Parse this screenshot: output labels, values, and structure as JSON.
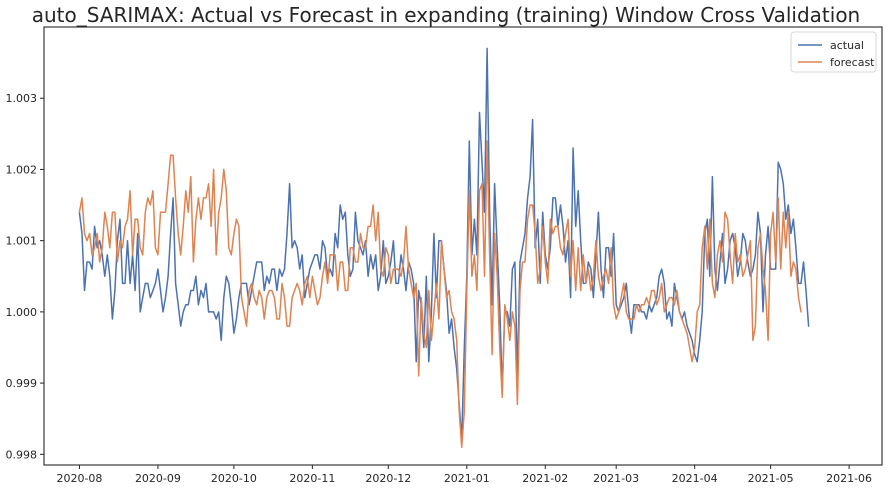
{
  "chart_data": {
    "type": "line",
    "title": "auto_SARIMAX: Actual vs Forecast in expanding (training) Window Cross Validation",
    "xlabel": "",
    "ylabel": "",
    "x_tick_labels": [
      "2020-08",
      "2020-09",
      "2020-10",
      "2020-11",
      "2020-12",
      "2021-01",
      "2021-02",
      "2021-03",
      "2021-04",
      "2021-05",
      "2021-06"
    ],
    "y_ticks": [
      0.998,
      0.999,
      1.0,
      1.001,
      1.002,
      1.003
    ],
    "y_tick_labels": [
      "0.998",
      "0.999",
      "1.000",
      "1.001",
      "1.002",
      "1.003"
    ],
    "xlim": [
      "2020-07-18",
      "2021-06-14"
    ],
    "ylim": [
      0.99785,
      1.004
    ],
    "x_start": "2020-08-01",
    "x_step_days": 1,
    "grid": false,
    "legend_position": "top-right",
    "series": [
      {
        "name": "actual",
        "color": "#4c72b0",
        "values": [
          1.0014,
          1.0011,
          1.0003,
          1.0007,
          1.0007,
          1.0006,
          1.0012,
          1.0009,
          1.001,
          1.0008,
          1.0005,
          1.0008,
          1.0005,
          0.9999,
          1.0003,
          1.001,
          1.0013,
          1.0004,
          1.0004,
          1.001,
          1.0004,
          1.0008,
          1.0003,
          1.0011,
          1.0,
          1.0002,
          1.0004,
          1.0004,
          1.0002,
          1.0003,
          1.0004,
          1.0006,
          1.0003,
          1.0,
          1.0002,
          1.0005,
          1.0011,
          1.0016,
          1.0004,
          1.0001,
          0.9998,
          1.0,
          1.0001,
          1.0001,
          1.0003,
          1.0003,
          1.0005,
          1.0001,
          1.0003,
          1.0002,
          1.0004,
          1.0,
          1.0,
          1.0,
          0.9999,
          1.0,
          0.9996,
          1.0002,
          1.0005,
          1.0004,
          1.0001,
          0.9997,
          0.9999,
          1.0002,
          1.0004,
          1.0004,
          1.0004,
          1.0001,
          1.0003,
          1.0005,
          1.0007,
          1.0007,
          1.0007,
          1.0003,
          1.0005,
          1.0004,
          1.0006,
          1.0006,
          1.0003,
          1.0006,
          1.0005,
          1.0006,
          1.0011,
          1.0018,
          1.0009,
          1.001,
          1.0009,
          1.0006,
          1.0008,
          1.0002,
          1.0004,
          1.0006,
          1.0007,
          1.0008,
          1.0008,
          1.0006,
          1.001,
          1.0009,
          1.0005,
          1.0006,
          1.0005,
          1.0011,
          1.0009,
          1.0015,
          1.0013,
          1.0014,
          1.0008,
          1.0005,
          1.0006,
          1.0014,
          1.001,
          1.0009,
          1.0008,
          1.001,
          1.0005,
          1.0008,
          1.0006,
          1.0008,
          1.0003,
          1.0005,
          1.001,
          1.0004,
          1.0005,
          1.0007,
          1.001,
          1.0004,
          1.0004,
          1.0008,
          1.0006,
          1.0003,
          1.0007,
          1.0006,
          1.0004,
          0.9993,
          1.0003,
          1.0001,
          0.9995,
          1.0005,
          0.9993,
          1.0,
          1.0011,
          1.0002,
          1.001,
          1.001,
          1.0006,
          1.0003,
          0.9997,
          0.9999,
          0.9995,
          0.9992,
          0.9987,
          0.9982,
          0.9995,
          1.0005,
          1.0024,
          1.0008,
          1.0013,
          1.0008,
          1.0028,
          1.0021,
          1.0014,
          1.0037,
          1.0014,
          1.0001,
          1.0018,
          1.0009,
          1.0001,
          0.9989,
          1.0,
          1.0,
          0.9998,
          1.0006,
          1.0007,
          0.9991,
          1.0007,
          1.0009,
          1.0011,
          1.0016,
          1.0019,
          1.0027,
          1.0009,
          1.0013,
          1.0004,
          1.0014,
          1.0008,
          1.0006,
          1.0009,
          1.0016,
          1.0016,
          1.0012,
          1.0015,
          1.0012,
          1.0007,
          1.001,
          1.0002,
          1.0023,
          1.0012,
          1.0017,
          1.001,
          1.0004,
          1.0004,
          1.0007,
          1.0006,
          1.0002,
          1.0008,
          1.0014,
          1.0006,
          1.0002,
          1.0009,
          1.0009,
          1.0005,
          1.0011,
          1.0001,
          1.0,
          1.0001,
          1.0002,
          1.0004,
          1.0,
          0.9997,
          1.0001,
          1.0001,
          1.0001,
          1.0,
          1.0,
          0.9999,
          1.0001,
          1.0,
          1.0001,
          1.0002,
          1.0005,
          1.0006,
          1.0004,
          0.9999,
          1.0,
          0.9998,
          1.0004,
          1.0002,
          1.0,
          0.9999,
          1.0,
          0.9998,
          0.9997,
          0.9996,
          0.9994,
          0.9993,
          0.9996,
          1.0,
          1.0011,
          1.0013,
          1.0005,
          1.0019,
          1.0006,
          1.0003,
          1.0007,
          1.0011,
          1.0004,
          1.0006,
          1.001,
          1.0011,
          1.0009,
          1.0005,
          1.0007,
          1.0011,
          1.001,
          1.0007,
          1.0005,
          1.0006,
          1.0008,
          1.0014,
          1.0011,
          1.0,
          1.0008,
          1.0012,
          1.0006,
          1.0006,
          1.0006,
          1.0021,
          1.002,
          1.0018,
          1.0013,
          1.0015,
          1.0011,
          1.0013,
          1.0009,
          1.0004,
          1.0004,
          1.0007,
          1.0003,
          0.9998
        ]
      },
      {
        "name": "forecast",
        "color": "#dd8452",
        "values": [
          1.0014,
          1.0016,
          1.0011,
          1.001,
          1.0011,
          1.0008,
          1.0009,
          1.0011,
          1.0007,
          1.0009,
          1.0014,
          1.0012,
          1.0009,
          1.0014,
          1.0014,
          1.0007,
          1.001,
          1.0009,
          1.0012,
          1.0013,
          1.0017,
          1.0008,
          1.0013,
          1.0013,
          1.0009,
          1.0008,
          1.0014,
          1.0016,
          1.0015,
          1.0017,
          1.0009,
          1.0008,
          1.0014,
          1.0014,
          1.0014,
          1.0018,
          1.0022,
          1.0022,
          1.0016,
          1.0011,
          1.0008,
          1.0012,
          1.0017,
          1.0014,
          1.0019,
          1.0007,
          1.0013,
          1.0016,
          1.0013,
          1.0016,
          1.0016,
          1.0018,
          1.0012,
          1.002,
          1.0008,
          1.0014,
          1.0016,
          1.002,
          1.0017,
          1.0009,
          1.0008,
          1.0011,
          1.0013,
          1.0012,
          1.0002,
          1.0,
          0.9998,
          1.0003,
          1.0004,
          1.0002,
          1.0001,
          1.0003,
          1.0002,
          0.9999,
          1.0002,
          1.0003,
          1.0003,
          1.0002,
          0.9999,
          0.9999,
          1.0004,
          1.0002,
          0.9998,
          0.9998,
          1.0002,
          1.0003,
          1.0004,
          1.0003,
          1.0001,
          1.0004,
          1.0005,
          1.0002,
          1.0005,
          1.0003,
          1.0001,
          1.0002,
          1.0005,
          1.0007,
          1.0004,
          1.0008,
          1.0008,
          1.0008,
          1.0003,
          1.0007,
          1.0007,
          1.0003,
          1.0003,
          1.0009,
          1.0009,
          1.0007,
          1.0007,
          1.0011,
          1.0009,
          1.0009,
          1.0012,
          1.0012,
          1.0015,
          1.001,
          1.0014,
          1.0006,
          1.0005,
          1.0009,
          1.0008,
          1.0004,
          1.0006,
          1.0006,
          1.0006,
          1.0005,
          1.0007,
          1.0012,
          1.0006,
          1.0004,
          1.0002,
          1.0004,
          0.9991,
          1.0002,
          0.9997,
          0.9995,
          1.0003,
          0.9996,
          1.0,
          1.0004,
          0.9999,
          1.001,
          1.0006,
          1.0002,
          1.0003,
          1.0,
          0.9999,
          0.9996,
          0.9986,
          0.9981,
          0.9986,
          1.0003,
          1.0017,
          1.0005,
          1.0008,
          1.0003,
          1.0017,
          1.0018,
          1.0005,
          1.0024,
          1.0008,
          0.9994,
          1.0011,
          1.0005,
          0.9995,
          0.9988,
          1.0001,
          0.9999,
          0.9996,
          1.0,
          0.9998,
          0.9987,
          1.0003,
          1.0007,
          1.0007,
          1.0013,
          1.0015,
          1.0015,
          1.0011,
          1.0004,
          1.0006,
          1.0012,
          1.0007,
          1.0004,
          1.0013,
          1.0011,
          1.0012,
          1.0012,
          1.0009,
          1.0008,
          1.0011,
          1.0013,
          1.0005,
          1.001,
          1.0003,
          1.0009,
          1.0003,
          1.0008,
          1.0004,
          1.0006,
          1.0003,
          1.0005,
          1.001,
          1.0005,
          1.0003,
          1.0005,
          1.0006,
          1.0004,
          1.0009,
          1.0001,
          0.9999,
          1.0,
          1.0002,
          1.0004,
          1.0,
          0.9999,
          0.9999,
          0.9999,
          1.0001,
          1.0,
          1.0001,
          1.0001,
          1.0002,
          1.0001,
          1.0003,
          1.0003,
          1.0001,
          1.0002,
          1.0004,
          1.0,
          1.0001,
          1.0002,
          1.0002,
          1.0001,
          1.0003,
          1.0,
          0.9999,
          0.9998,
          0.9997,
          0.9995,
          0.9993,
          0.9995,
          1.0,
          1.0001,
          1.0009,
          1.0012,
          1.0006,
          1.0013,
          1.0004,
          1.0002,
          1.0008,
          1.001,
          1.0007,
          1.0014,
          1.0013,
          1.0008,
          1.0004,
          1.0011,
          1.0007,
          1.0008,
          1.0005,
          1.0006,
          1.0008,
          1.001,
          0.9996,
          0.9998,
          1.0009,
          1.0011,
          1.0006,
          1.0003,
          0.9996,
          1.0011,
          1.0014,
          1.0007,
          1.0016,
          1.0006,
          1.0014,
          1.0009,
          1.0014,
          1.0005,
          1.0007,
          1.0006,
          1.0002,
          1.0
        ]
      }
    ]
  }
}
